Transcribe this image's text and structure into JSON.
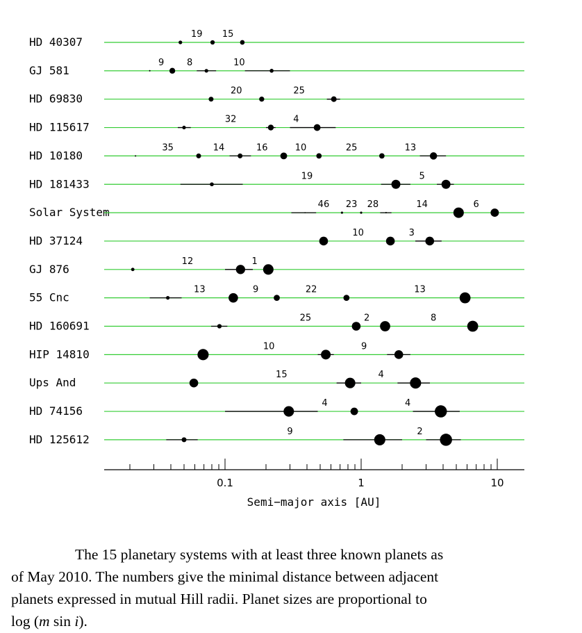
{
  "chart_data": {
    "type": "scatter",
    "xlabel": "Semi−major axis [AU]",
    "x_scale": "log",
    "xlim": [
      0.015,
      15
    ],
    "x_ticks": [
      {
        "value": 0.1,
        "label": "0.1"
      },
      {
        "value": 1,
        "label": "1"
      },
      {
        "value": 10,
        "label": "10"
      }
    ],
    "line_color": "#33cc33",
    "systems": [
      {
        "name": "HD 40307",
        "planets": [
          {
            "a": 0.047,
            "size": 1.5
          },
          {
            "a": 0.081,
            "size": 1.8
          },
          {
            "a": 0.134,
            "size": 1.9
          }
        ],
        "gaps": [
          {
            "label": "19",
            "x": 0.062
          },
          {
            "label": "15",
            "x": 0.105
          }
        ]
      },
      {
        "name": "GJ 581",
        "planets": [
          {
            "a": 0.028,
            "size": 0.6
          },
          {
            "a": 0.041,
            "size": 2.4
          },
          {
            "a": 0.073,
            "size": 1.5,
            "range": [
              0.062,
              0.086
            ]
          },
          {
            "a": 0.22,
            "size": 1.6,
            "range": [
              0.14,
              0.3
            ]
          }
        ],
        "gaps": [
          {
            "label": "9",
            "x": 0.034
          },
          {
            "label": "8",
            "x": 0.055
          },
          {
            "label": "10",
            "x": 0.127
          }
        ]
      },
      {
        "name": "HD 69830",
        "planets": [
          {
            "a": 0.079,
            "size": 2.0
          },
          {
            "a": 0.186,
            "size": 2.1
          },
          {
            "a": 0.63,
            "size": 2.3,
            "range": [
              0.56,
              0.7
            ]
          }
        ],
        "gaps": [
          {
            "label": "20",
            "x": 0.121
          },
          {
            "label": "25",
            "x": 0.35
          }
        ]
      },
      {
        "name": "HD 115617",
        "planets": [
          {
            "a": 0.05,
            "size": 1.5,
            "range": [
              0.045,
              0.056
            ]
          },
          {
            "a": 0.217,
            "size": 2.4,
            "range": [
              0.2,
              0.235
            ]
          },
          {
            "a": 0.475,
            "size": 2.8,
            "range": [
              0.3,
              0.65
            ]
          }
        ],
        "gaps": [
          {
            "label": "32",
            "x": 0.11
          },
          {
            "label": "4",
            "x": 0.333
          }
        ]
      },
      {
        "name": "HD 10180",
        "planets": [
          {
            "a": 0.022,
            "size": 0.6
          },
          {
            "a": 0.064,
            "size": 2.0
          },
          {
            "a": 0.129,
            "size": 2.0,
            "range": [
              0.108,
              0.155
            ]
          },
          {
            "a": 0.27,
            "size": 2.8
          },
          {
            "a": 0.49,
            "size": 2.2
          },
          {
            "a": 1.42,
            "size": 2.2
          },
          {
            "a": 3.4,
            "size": 3.0,
            "range": [
              2.7,
              4.2
            ]
          }
        ],
        "gaps": [
          {
            "label": "35",
            "x": 0.038
          },
          {
            "label": "14",
            "x": 0.09
          },
          {
            "label": "16",
            "x": 0.187
          },
          {
            "label": "10",
            "x": 0.36
          },
          {
            "label": "25",
            "x": 0.85
          },
          {
            "label": "13",
            "x": 2.3
          }
        ]
      },
      {
        "name": "HD 181433",
        "planets": [
          {
            "a": 0.08,
            "size": 1.6,
            "range": [
              0.047,
              0.135
            ]
          },
          {
            "a": 1.8,
            "size": 3.7,
            "range": [
              1.4,
              2.3
            ]
          },
          {
            "a": 4.2,
            "size": 3.7,
            "range": [
              3.6,
              4.8
            ]
          }
        ],
        "gaps": [
          {
            "label": "19",
            "x": 0.4
          },
          {
            "label": "5",
            "x": 2.8
          }
        ]
      },
      {
        "name": "Solar System",
        "planets": [
          {
            "a": 0.387,
            "size": 0.4,
            "range": [
              0.307,
              0.467
            ]
          },
          {
            "a": 0.723,
            "size": 0.9
          },
          {
            "a": 1.0,
            "size": 0.9
          },
          {
            "a": 1.524,
            "size": 0.6,
            "range": [
              1.38,
              1.67
            ]
          },
          {
            "a": 5.2,
            "size": 4.3
          },
          {
            "a": 9.58,
            "size": 3.4
          }
        ],
        "gaps": [
          {
            "label": "46",
            "x": 0.53
          },
          {
            "label": "23",
            "x": 0.85
          },
          {
            "label": "28",
            "x": 1.22
          },
          {
            "label": "14",
            "x": 2.8
          },
          {
            "label": "6",
            "x": 7.0
          }
        ]
      },
      {
        "name": "HD 37124",
        "planets": [
          {
            "a": 0.53,
            "size": 3.6
          },
          {
            "a": 1.64,
            "size": 3.6
          },
          {
            "a": 3.19,
            "size": 3.6,
            "range": [
              2.5,
              3.9
            ]
          }
        ],
        "gaps": [
          {
            "label": "10",
            "x": 0.95
          },
          {
            "label": "3",
            "x": 2.35
          }
        ]
      },
      {
        "name": "GJ 876",
        "planets": [
          {
            "a": 0.021,
            "size": 1.4
          },
          {
            "a": 0.13,
            "size": 3.8,
            "range": [
              0.1,
              0.16
            ]
          },
          {
            "a": 0.208,
            "size": 4.3
          }
        ],
        "gaps": [
          {
            "label": "12",
            "x": 0.053
          },
          {
            "label": "1",
            "x": 0.165
          }
        ]
      },
      {
        "name": "55 Cnc",
        "planets": [
          {
            "a": 0.038,
            "size": 1.5,
            "range": [
              0.028,
              0.048
            ]
          },
          {
            "a": 0.115,
            "size": 3.9
          },
          {
            "a": 0.24,
            "size": 2.5
          },
          {
            "a": 0.78,
            "size": 2.5
          },
          {
            "a": 5.8,
            "size": 4.5
          }
        ],
        "gaps": [
          {
            "label": "13",
            "x": 0.065
          },
          {
            "label": "9",
            "x": 0.168
          },
          {
            "label": "22",
            "x": 0.43
          },
          {
            "label": "13",
            "x": 2.7
          }
        ]
      },
      {
        "name": "HD 160691",
        "planets": [
          {
            "a": 0.091,
            "size": 1.8,
            "range": [
              0.079,
              0.104
            ]
          },
          {
            "a": 0.92,
            "size": 3.6
          },
          {
            "a": 1.5,
            "size": 4.2
          },
          {
            "a": 6.6,
            "size": 4.5
          }
        ],
        "gaps": [
          {
            "label": "25",
            "x": 0.39
          },
          {
            "label": "2",
            "x": 1.1
          },
          {
            "label": "8",
            "x": 3.4
          }
        ]
      },
      {
        "name": "HIP 14810",
        "planets": [
          {
            "a": 0.069,
            "size": 4.6
          },
          {
            "a": 0.55,
            "size": 4.0,
            "range": [
              0.48,
              0.63
            ]
          },
          {
            "a": 1.89,
            "size": 3.6,
            "range": [
              1.55,
              2.3
            ]
          }
        ],
        "gaps": [
          {
            "label": "10",
            "x": 0.21
          },
          {
            "label": "9",
            "x": 1.05
          }
        ]
      },
      {
        "name": "Ups And",
        "planets": [
          {
            "a": 0.059,
            "size": 3.6
          },
          {
            "a": 0.83,
            "size": 4.3,
            "range": [
              0.66,
              1.0
            ]
          },
          {
            "a": 2.51,
            "size": 4.6,
            "range": [
              1.85,
              3.2
            ]
          }
        ],
        "gaps": [
          {
            "label": "15",
            "x": 0.26
          },
          {
            "label": "4",
            "x": 1.4
          }
        ]
      },
      {
        "name": "HD 74156",
        "planets": [
          {
            "a": 0.294,
            "size": 4.3,
            "range": [
              0.1,
              0.48
            ]
          },
          {
            "a": 0.89,
            "size": 3.1
          },
          {
            "a": 3.85,
            "size": 5.0,
            "range": [
              2.4,
              5.3
            ]
          }
        ],
        "gaps": [
          {
            "label": "4",
            "x": 0.54
          },
          {
            "label": "4",
            "x": 2.2
          }
        ]
      },
      {
        "name": "HD 125612",
        "planets": [
          {
            "a": 0.05,
            "size": 2.0,
            "range": [
              0.037,
              0.063
            ]
          },
          {
            "a": 1.37,
            "size": 4.6,
            "range": [
              0.74,
              2.0
            ]
          },
          {
            "a": 4.2,
            "size": 5.0,
            "range": [
              3.0,
              5.4
            ]
          }
        ],
        "gaps": [
          {
            "label": "9",
            "x": 0.3
          },
          {
            "label": "2",
            "x": 2.7
          }
        ]
      }
    ]
  },
  "caption": {
    "line1": "The 15 planetary systems with at least three known planets as",
    "line2": "of May 2010. The numbers give the minimal distance between adjacent",
    "line3": "planets expressed in mutual Hill radii. Planet sizes are proportional to",
    "line4_prefix": "log (",
    "line4_m": "m",
    "line4_sin": " sin ",
    "line4_i": "i",
    "line4_suffix": ")."
  }
}
